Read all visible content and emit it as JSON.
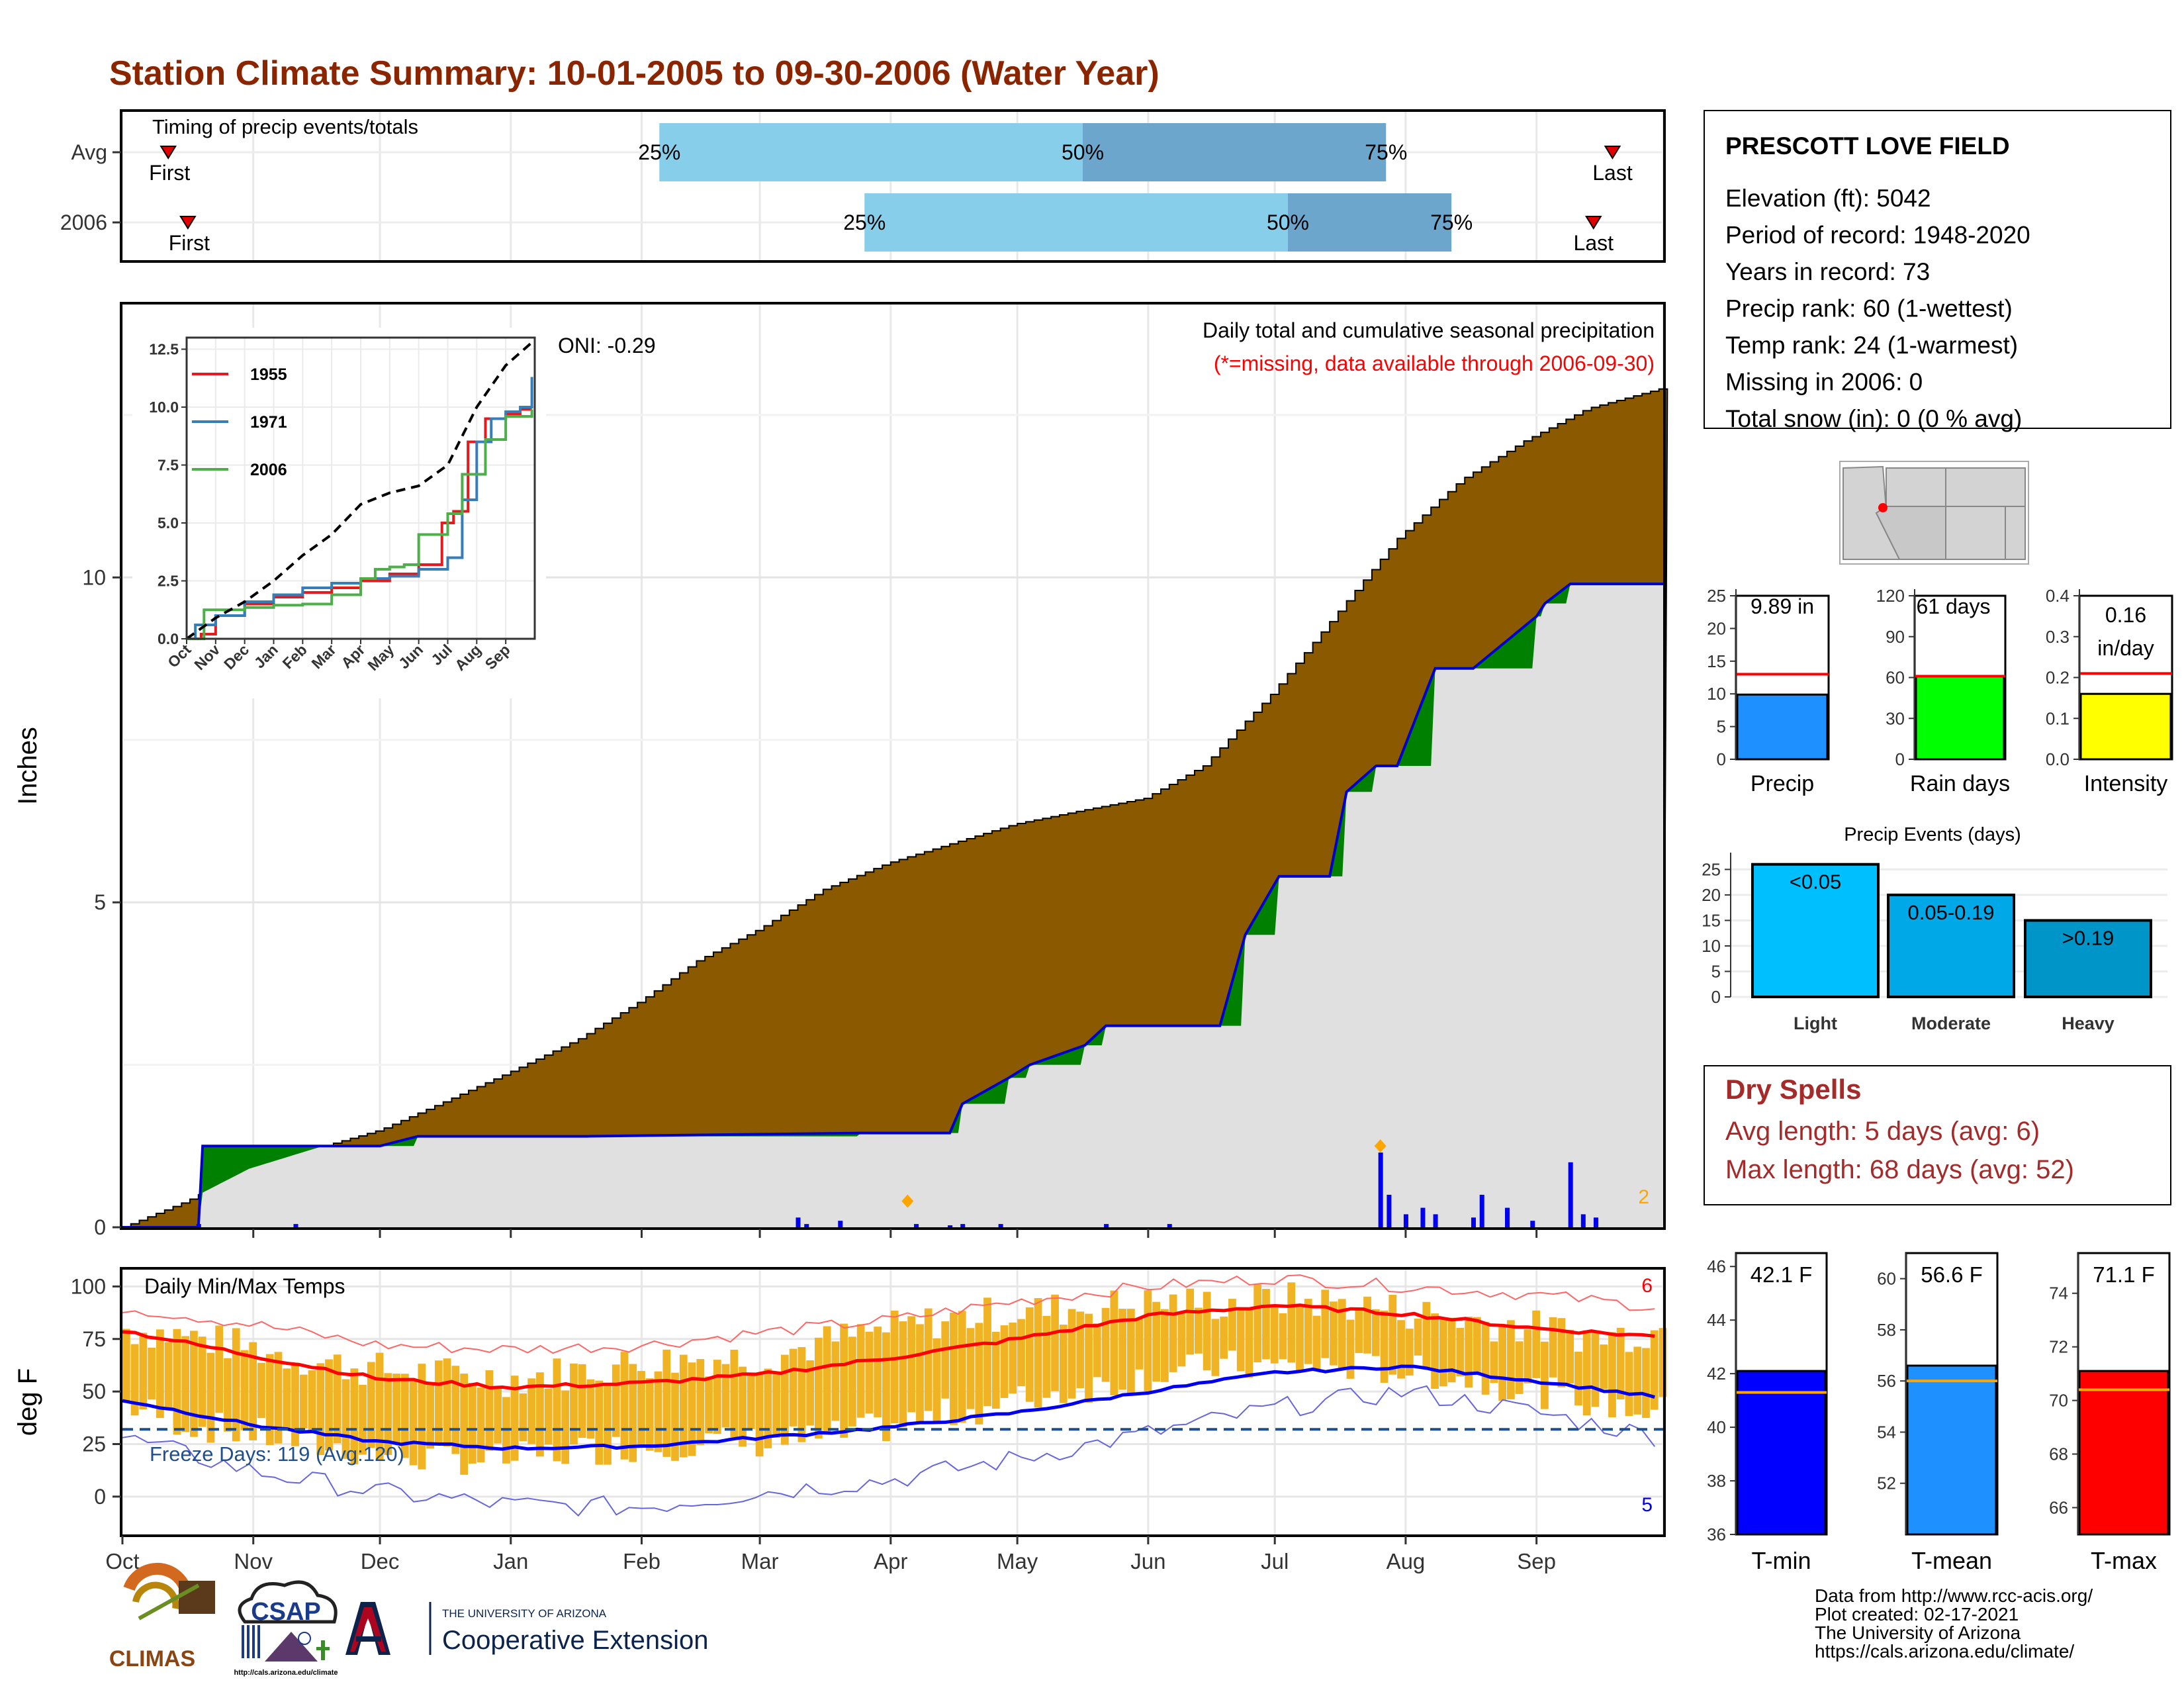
{
  "title": "Station Climate Summary: 10-01-2005 to 09-30-2006 (Water Year)",
  "timing": {
    "label": "Timing of precip events/totals",
    "rows": [
      {
        "name": "Avg",
        "first_label": "First",
        "last_label": "Last",
        "first_month": 0.35,
        "last_month": 11.6,
        "p25": 4.15,
        "p50": 7.5,
        "p75": 9.85,
        "p25_label": "25%",
        "p50_label": "50%",
        "p75_label": "75%"
      },
      {
        "name": "2006",
        "first_label": "First",
        "last_label": "Last",
        "first_month": 0.5,
        "last_month": 11.45,
        "p25": 5.8,
        "p50": 9.1,
        "p75": 10.35,
        "p25_label": "25%",
        "p50_label": "50%",
        "p75_label": "75%"
      }
    ],
    "colors": {
      "light": "#87CEEB",
      "dark": "#6CA6CD",
      "marker": "#e00000"
    }
  },
  "chart_data": [
    {
      "type": "area",
      "name": "Daily total and cumulative seasonal precipitation",
      "title": "Daily total and cumulative seasonal precipitation",
      "subtitle": "(*=missing, data available through 2006-09-30)",
      "ylabel": "Inches",
      "ylim": [
        0,
        14.2
      ],
      "yticks": [
        0,
        5,
        10
      ],
      "oni": "ONI: -0.29",
      "missing_count": "2",
      "avg_cumulative": {
        "doy": [
          0,
          15,
          30,
          45,
          61,
          75,
          92,
          108,
          123,
          136,
          151,
          166,
          181,
          196,
          211,
          226,
          242,
          256,
          272,
          287,
          302,
          317,
          332,
          347,
          364
        ],
        "in": [
          0,
          0.4,
          0.9,
          1.2,
          1.5,
          1.9,
          2.4,
          2.9,
          3.5,
          4.1,
          4.6,
          5.2,
          5.6,
          5.9,
          6.2,
          6.4,
          6.6,
          7.1,
          8.2,
          9.4,
          10.6,
          11.5,
          12.1,
          12.6,
          12.9
        ]
      },
      "obs_cumulative": {
        "doy": [
          0,
          18,
          19,
          61,
          70,
          110,
          175,
          196,
          199,
          210,
          215,
          228,
          233,
          260,
          266,
          274,
          286,
          290,
          297,
          302,
          311,
          320,
          335,
          337,
          343,
          364
        ],
        "in": [
          0,
          0,
          1.25,
          1.25,
          1.4,
          1.4,
          1.45,
          1.45,
          1.9,
          2.3,
          2.5,
          2.8,
          3.1,
          3.1,
          4.5,
          5.4,
          5.4,
          6.7,
          7.1,
          7.1,
          8.6,
          8.6,
          9.4,
          9.6,
          9.9,
          9.9
        ]
      },
      "daily_bars": {
        "doy": [
          18,
          41,
          160,
          162,
          170,
          188,
          196,
          199,
          208,
          233,
          248,
          298,
          300,
          304,
          308,
          311,
          320,
          322,
          328,
          334,
          343,
          346,
          349
        ],
        "in": [
          0.05,
          0.05,
          0.15,
          0.05,
          0.1,
          0.05,
          0.03,
          0.05,
          0.05,
          0.05,
          0.05,
          1.15,
          0.5,
          0.2,
          0.3,
          0.2,
          0.15,
          0.5,
          0.3,
          0.1,
          1.0,
          0.2,
          0.15
        ]
      },
      "max_markers": {
        "doy": [
          186,
          298
        ],
        "in": [
          0.3,
          1.15
        ]
      },
      "colors": {
        "deficit": "#8B5A00",
        "surplus": "#008000",
        "obs_fill": "#E0E0E0",
        "obs_line": "#0000CD",
        "bar": "#0000EE",
        "marker": "#FFA500"
      },
      "inset": {
        "x_ticks": [
          "Oct",
          "Nov",
          "Dec",
          "Jan",
          "Feb",
          "Mar",
          "Apr",
          "May",
          "Jun",
          "Jul",
          "Aug",
          "Sep"
        ],
        "yticks": [
          0.0,
          2.5,
          5.0,
          7.5,
          10.0,
          12.5
        ],
        "ytick_labels": [
          "0.0",
          "2.5",
          "5.0",
          "7.5",
          "10.0",
          "12.5"
        ],
        "ylim": [
          0,
          13
        ],
        "series": [
          {
            "name": "1955",
            "color": "#e41a1c",
            "month": [
              0,
              0.5,
              1.0,
              2.0,
              3.0,
              4.0,
              5.0,
              6.0,
              7.0,
              8.0,
              8.8,
              9.2,
              9.7,
              10.3,
              11.0,
              11.5,
              11.9
            ],
            "in": [
              0,
              0.2,
              1.0,
              1.5,
              1.8,
              2.0,
              2.2,
              2.5,
              2.8,
              3.2,
              5.0,
              5.5,
              8.5,
              9.5,
              9.7,
              9.9,
              9.9
            ]
          },
          {
            "name": "1971",
            "color": "#377eb8",
            "month": [
              0,
              0.3,
              1.0,
              2.0,
              3.0,
              4.0,
              5.0,
              6.0,
              7.0,
              8.0,
              9.0,
              9.5,
              10.0,
              10.5,
              11.0,
              11.5,
              11.9
            ],
            "in": [
              0,
              0.6,
              1.0,
              1.6,
              1.9,
              2.2,
              2.4,
              2.6,
              2.7,
              3.0,
              3.5,
              6.0,
              8.5,
              9.5,
              9.8,
              10.0,
              11.3
            ]
          },
          {
            "name": "2006",
            "color": "#4daf4a",
            "month": [
              0,
              0.6,
              1.0,
              2.0,
              3.0,
              4.0,
              5.0,
              6.0,
              6.5,
              7.0,
              7.5,
              8.0,
              9.0,
              9.5,
              10.3,
              11.0,
              11.9
            ],
            "in": [
              0,
              1.25,
              1.25,
              1.35,
              1.45,
              1.5,
              1.9,
              2.6,
              3.0,
              3.1,
              3.2,
              4.5,
              5.4,
              7.1,
              8.6,
              9.6,
              9.9
            ]
          }
        ],
        "avg": {
          "month": [
            0,
            1,
            2,
            3,
            4,
            5,
            6,
            7,
            8,
            9,
            10,
            11,
            12
          ],
          "in": [
            0,
            0.9,
            1.6,
            2.5,
            3.6,
            4.5,
            5.8,
            6.3,
            6.6,
            7.5,
            10.0,
            11.8,
            12.9
          ]
        }
      }
    },
    {
      "type": "line",
      "name": "Daily Min/Max Temps",
      "title": "Daily Min/Max Temps",
      "ylabel": "deg F",
      "ylim": [
        -18,
        108
      ],
      "yticks": [
        0,
        25,
        50,
        75,
        100
      ],
      "freeze_label": "Freeze Days: 119 (Avg:120)",
      "freeze_line": 32,
      "top_count": "6",
      "bottom_count": "5",
      "norm_max": {
        "month": [
          0,
          1,
          2,
          3,
          4,
          5,
          6,
          7,
          8,
          9,
          10,
          11,
          12
        ],
        "F": [
          79,
          67,
          56,
          52,
          54,
          58,
          66,
          75,
          86,
          91,
          87,
          80,
          76
        ]
      },
      "norm_min": {
        "month": [
          0,
          1,
          2,
          3,
          4,
          5,
          6,
          7,
          8,
          9,
          10,
          11,
          12
        ],
        "F": [
          46,
          34,
          26,
          23,
          24,
          28,
          33,
          40,
          50,
          59,
          62,
          55,
          47
        ]
      },
      "rec_max": {
        "month": [
          0,
          1,
          2,
          3,
          4,
          5,
          6,
          7,
          8,
          9,
          10,
          11,
          12
        ],
        "F": [
          90,
          82,
          72,
          70,
          72,
          78,
          84,
          93,
          100,
          104,
          100,
          96,
          90
        ]
      },
      "rec_min": {
        "month": [
          0,
          1,
          2,
          3,
          4,
          5,
          6,
          7,
          8,
          9,
          10,
          11,
          12
        ],
        "F": [
          28,
          12,
          2,
          -4,
          -5,
          2,
          8,
          18,
          30,
          42,
          50,
          40,
          28
        ]
      },
      "obs_max": {
        "month": [
          0,
          0.5,
          1,
          1.5,
          2,
          2.5,
          3,
          3.5,
          4,
          4.5,
          5,
          5.5,
          6,
          6.5,
          7,
          7.5,
          8,
          8.5,
          9,
          9.5,
          10,
          10.5,
          11,
          11.5,
          12
        ],
        "F": [
          80,
          76,
          70,
          64,
          60,
          58,
          56,
          60,
          64,
          66,
          66,
          74,
          80,
          85,
          88,
          90,
          92,
          92,
          94,
          92,
          88,
          84,
          80,
          76,
          80
        ]
      },
      "obs_min": {
        "month": [
          0,
          0.5,
          1,
          1.5,
          2,
          2.5,
          3,
          3.5,
          4,
          4.5,
          5,
          5.5,
          6,
          6.5,
          7,
          7.5,
          8,
          8.5,
          9,
          9.5,
          10,
          10.5,
          11,
          11.5,
          12
        ],
        "F": [
          44,
          34,
          30,
          24,
          20,
          18,
          18,
          22,
          24,
          26,
          26,
          28,
          34,
          40,
          46,
          52,
          58,
          62,
          62,
          62,
          60,
          56,
          50,
          44,
          40
        ]
      },
      "x_ticks": [
        "Oct",
        "Nov",
        "Dec",
        "Jan",
        "Feb",
        "Mar",
        "Apr",
        "May",
        "Jun",
        "Jul",
        "Aug",
        "Sep"
      ],
      "colors": {
        "band": "#F0B323",
        "norm_max": "#ff0000",
        "norm_min": "#0000ee",
        "rec_max": "#ff6666",
        "rec_min": "#6666dd",
        "freeze": "#1f4e8c"
      }
    }
  ],
  "station": {
    "name": "PRESCOTT LOVE FIELD",
    "lines": [
      "Elevation (ft): 5042",
      "Period of record: 1948-2020",
      "Years in record: 73",
      "Precip rank: 60 (1-wettest)",
      "Temp rank: 24 (1-warmest)",
      "Missing in 2006: 0",
      "Total snow (in): 0 (0 % avg)"
    ]
  },
  "mini_bars": [
    {
      "label": "Precip",
      "value_text": "9.89 in",
      "value": 9.89,
      "avg": 13.0,
      "ylim": [
        0,
        25
      ],
      "ticks": [
        0,
        5,
        10,
        15,
        20,
        25
      ],
      "color": "#1E90FF"
    },
    {
      "label": "Rain days",
      "value_text": "61 days",
      "value": 61,
      "avg": 61,
      "ylim": [
        0,
        120
      ],
      "ticks": [
        0,
        30,
        60,
        90,
        120
      ],
      "color": "#00FF00"
    },
    {
      "label": "Intensity",
      "value_text": "0.16 in/day",
      "value_line1": "0.16",
      "value_line2": "in/day",
      "value": 0.16,
      "avg": 0.21,
      "ylim": [
        0,
        0.4
      ],
      "ticks": [
        0.0,
        0.1,
        0.2,
        0.3,
        0.4
      ],
      "tick_labels": [
        "0.0",
        "0.1",
        "0.2",
        "0.3",
        "0.4"
      ],
      "color": "#FFFF00"
    }
  ],
  "precip_events": {
    "title": "Precip Events (days)",
    "ticks": [
      0,
      5,
      10,
      15,
      20,
      25
    ],
    "ylim": [
      0,
      27
    ],
    "bars": [
      {
        "category": "Light",
        "label": "<0.05",
        "value": 26,
        "color": "#00BFFF"
      },
      {
        "category": "Moderate",
        "label": "0.05-0.19",
        "value": 20,
        "color": "#00A8E8"
      },
      {
        "category": "Heavy",
        "label": ">0.19",
        "value": 15,
        "color": "#0095C8"
      }
    ]
  },
  "dry_spells": {
    "title": "Dry Spells",
    "avg_line": "Avg length: 5 days (avg: 6)",
    "max_line": "Max length: 68 days (avg: 52)",
    "color": "#A52A2A"
  },
  "temp_bars": [
    {
      "label": "T-min",
      "value_text": "42.1 F",
      "value": 42.1,
      "avg": 41.3,
      "ylim": [
        36,
        46.5
      ],
      "ticks": [
        36,
        38,
        40,
        42,
        44,
        46
      ],
      "color": "#0000FF"
    },
    {
      "label": "T-mean",
      "value_text": "56.6 F",
      "value": 56.6,
      "avg": 56.0,
      "ylim": [
        50,
        61
      ],
      "ticks": [
        52,
        54,
        56,
        58,
        60
      ],
      "color": "#1E90FF"
    },
    {
      "label": "T-max",
      "value_text": "71.1 F",
      "value": 71.1,
      "avg": 70.4,
      "ylim": [
        65,
        75.5
      ],
      "ticks": [
        66,
        68,
        70,
        72,
        74
      ],
      "color": "#FF0000"
    }
  ],
  "footer": {
    "lines": [
      "Data from http://www.rcc-acis.org/",
      "Plot created: 02-17-2021",
      "The University of Arizona",
      "https://cals.arizona.edu/climate/"
    ],
    "logos": {
      "climas": "CLIMAS",
      "csap": "CSAP",
      "csap_url": "http://cals.arizona.edu/climate",
      "ua_small": "THE UNIVERSITY OF ARIZONA",
      "ua_big": "Cooperative Extension"
    }
  }
}
